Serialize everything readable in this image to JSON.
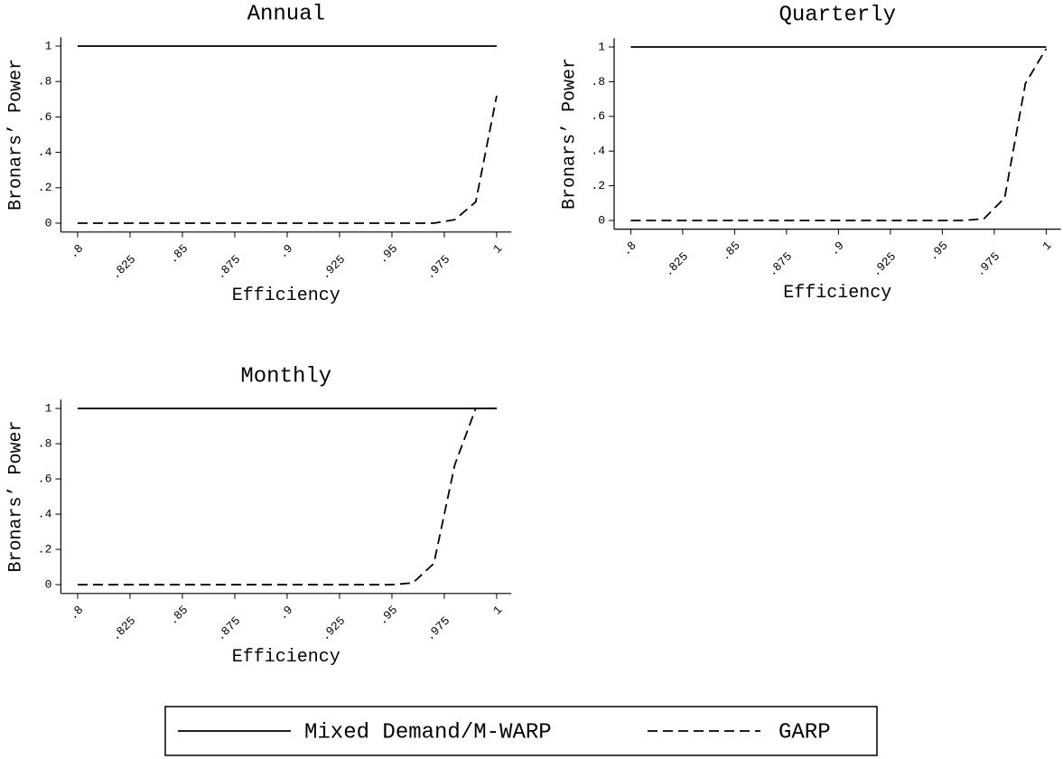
{
  "chart_data": [
    {
      "type": "line",
      "title": "Annual",
      "xlabel": "Efficiency",
      "ylabel": "Bronars’ Power",
      "x": [
        0.8,
        0.81,
        0.82,
        0.83,
        0.84,
        0.85,
        0.86,
        0.87,
        0.88,
        0.89,
        0.9,
        0.91,
        0.92,
        0.93,
        0.94,
        0.95,
        0.96,
        0.97,
        0.98,
        0.99,
        1
      ],
      "series": [
        {
          "name": "Mixed Demand/M-WARP",
          "color": "#000000",
          "line_style": "solid",
          "values": [
            1,
            1,
            1,
            1,
            1,
            1,
            1,
            1,
            1,
            1,
            1,
            1,
            1,
            1,
            1,
            1,
            1,
            1,
            1,
            1,
            1
          ]
        },
        {
          "name": "GARP",
          "color": "#000000",
          "line_style": "dashed",
          "values": [
            0,
            0,
            0,
            0,
            0,
            0,
            0,
            0,
            0,
            0,
            0,
            0,
            0,
            0,
            0,
            0,
            0,
            0,
            0.02,
            0.12,
            0.72
          ]
        }
      ],
      "xlim": [
        0.792,
        1.007
      ],
      "ylim": [
        -0.05,
        1.05
      ],
      "xticks": [
        {
          "value": 0.8,
          "label": ".8"
        },
        {
          "value": 0.825,
          "label": ".825"
        },
        {
          "value": 0.85,
          "label": ".85"
        },
        {
          "value": 0.875,
          "label": ".875"
        },
        {
          "value": 0.9,
          "label": ".9"
        },
        {
          "value": 0.925,
          "label": ".925"
        },
        {
          "value": 0.95,
          "label": ".95"
        },
        {
          "value": 0.975,
          "label": ".975"
        },
        1
      ],
      "yticks": [
        0,
        {
          "value": 0.2,
          "label": ".2"
        },
        {
          "value": 0.4,
          "label": ".4"
        },
        {
          "value": 0.6,
          "label": ".6"
        },
        {
          "value": 0.8,
          "label": ".8"
        },
        1
      ],
      "grid": false
    },
    {
      "type": "line",
      "title": "Quarterly",
      "xlabel": "Efficiency",
      "ylabel": "Bronars’ Power",
      "x": [
        0.8,
        0.81,
        0.82,
        0.83,
        0.84,
        0.85,
        0.86,
        0.87,
        0.88,
        0.89,
        0.9,
        0.91,
        0.92,
        0.93,
        0.94,
        0.95,
        0.96,
        0.97,
        0.98,
        0.99,
        1
      ],
      "series": [
        {
          "color": "#000000",
          "line_style": "solid",
          "values": [
            1,
            1,
            1,
            1,
            1,
            1,
            1,
            1,
            1,
            1,
            1,
            1,
            1,
            1,
            1,
            1,
            1,
            1,
            1,
            1,
            1
          ]
        },
        {
          "color": "#000000",
          "line_style": "dashed",
          "values": [
            0,
            0,
            0,
            0,
            0,
            0,
            0,
            0,
            0,
            0,
            0,
            0,
            0,
            0,
            0,
            0,
            0,
            0.01,
            0.13,
            0.79,
            0.99
          ]
        }
      ],
      "xlim": [
        0.792,
        1.007
      ],
      "ylim": [
        -0.05,
        1.05
      ],
      "xticks": [
        {
          "value": 0.8,
          "label": ".8"
        },
        {
          "value": 0.825,
          "label": ".825"
        },
        {
          "value": 0.85,
          "label": ".85"
        },
        {
          "value": 0.875,
          "label": ".875"
        },
        {
          "value": 0.9,
          "label": ".9"
        },
        {
          "value": 0.925,
          "label": ".925"
        },
        {
          "value": 0.95,
          "label": ".95"
        },
        {
          "value": 0.975,
          "label": ".975"
        },
        1
      ],
      "yticks": [
        0,
        {
          "value": 0.2,
          "label": ".2"
        },
        {
          "value": 0.4,
          "label": ".4"
        },
        {
          "value": 0.6,
          "label": ".6"
        },
        {
          "value": 0.8,
          "label": ".8"
        },
        1
      ],
      "grid": false
    },
    {
      "type": "line",
      "title": "Monthly",
      "xlabel": "Efficiency",
      "ylabel": "Bronars’ Power",
      "x": [
        0.8,
        0.81,
        0.82,
        0.83,
        0.84,
        0.85,
        0.86,
        0.87,
        0.88,
        0.89,
        0.9,
        0.91,
        0.92,
        0.93,
        0.94,
        0.95,
        0.96,
        0.97,
        0.98,
        0.99,
        1
      ],
      "series": [
        {
          "color": "#000000",
          "line_style": "solid",
          "values": [
            1,
            1,
            1,
            1,
            1,
            1,
            1,
            1,
            1,
            1,
            1,
            1,
            1,
            1,
            1,
            1,
            1,
            1,
            1,
            1,
            1
          ]
        },
        {
          "color": "#000000",
          "line_style": "dashed",
          "values": [
            0,
            0,
            0,
            0,
            0,
            0,
            0,
            0,
            0,
            0,
            0,
            0,
            0,
            0,
            0,
            0,
            0.01,
            0.12,
            0.68,
            1,
            1
          ]
        }
      ],
      "xlim": [
        0.792,
        1.007
      ],
      "ylim": [
        -0.05,
        1.05
      ],
      "xticks": [
        {
          "value": 0.8,
          "label": ".8"
        },
        {
          "value": 0.825,
          "label": ".825"
        },
        {
          "value": 0.85,
          "label": ".85"
        },
        {
          "value": 0.875,
          "label": ".875"
        },
        {
          "value": 0.9,
          "label": ".9"
        },
        {
          "value": 0.925,
          "label": ".925"
        },
        {
          "value": 0.95,
          "label": ".95"
        },
        {
          "value": 0.975,
          "label": ".975"
        },
        1
      ],
      "yticks": [
        0,
        {
          "value": 0.2,
          "label": ".2"
        },
        {
          "value": 0.4,
          "label": ".4"
        },
        {
          "value": 0.6,
          "label": ".6"
        },
        {
          "value": 0.8,
          "label": ".8"
        },
        1
      ],
      "grid": false
    }
  ]
}
